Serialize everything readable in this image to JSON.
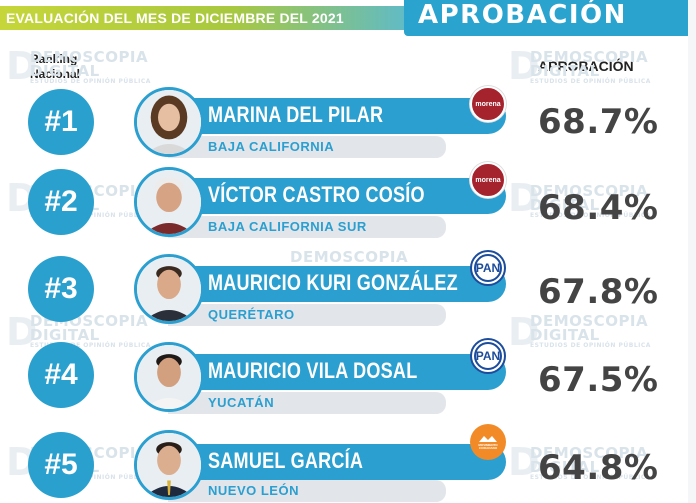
{
  "header": {
    "left_title": "EVALUACIÓN DEL MES DE DICIEMBRE DEL 2021",
    "right_title": "APROBACIÓN"
  },
  "labels": {
    "ranking": "Ranking Nacional",
    "aprobacion": "APROBACIÓN"
  },
  "watermark": {
    "line1": "DEMOSCOPIA",
    "line2": "DIGITAL",
    "line3": "ESTUDIOS DE OPINIÓN PÚBLICA"
  },
  "rows": [
    {
      "rank": "#1",
      "name": "MARINA DEL PILAR",
      "state": "BAJA CALIFORNIA",
      "party": "morena",
      "approval": "68.7%"
    },
    {
      "rank": "#2",
      "name": "VÍCTOR CASTRO COSÍO",
      "state": "BAJA CALIFORNIA SUR",
      "party": "morena",
      "approval": "68.4%"
    },
    {
      "rank": "#3",
      "name": "MAURICIO KURI GONZÁLEZ",
      "state": "QUERÉTARO",
      "party": "PAN",
      "approval": "67.8%"
    },
    {
      "rank": "#4",
      "name": "MAURICIO VILA DOSAL",
      "state": "YUCATÁN",
      "party": "PAN",
      "approval": "67.5%"
    },
    {
      "rank": "#5",
      "name": "SAMUEL GARCÍA",
      "state": "NUEVO LEÓN",
      "party": "MOVIMIENTO CIUDADANO",
      "approval": "64.8%"
    }
  ],
  "colors": {
    "accent_blue": "#2a9fd0",
    "header_green": "#c6d63a",
    "morena": "#a5232d",
    "pan": "#1c4c9c",
    "mc": "#f28b27"
  }
}
